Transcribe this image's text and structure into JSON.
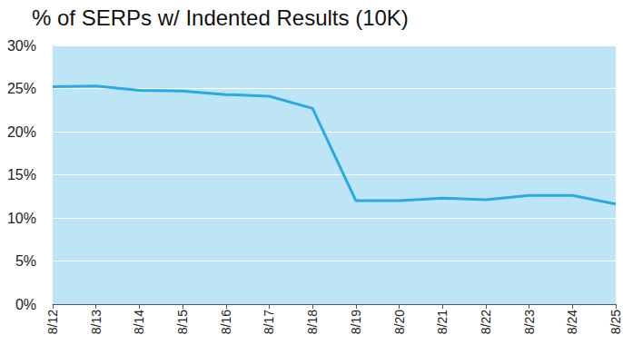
{
  "chart_data": {
    "type": "line",
    "title": "% of SERPs w/ Indented Results (10K)",
    "categories": [
      "8/12",
      "8/13",
      "8/14",
      "8/15",
      "8/16",
      "8/17",
      "8/18",
      "8/19",
      "8/20",
      "8/21",
      "8/22",
      "8/23",
      "8/24",
      "8/25"
    ],
    "values": [
      25.2,
      25.3,
      24.8,
      24.7,
      24.3,
      24.1,
      22.7,
      12.0,
      12.0,
      12.3,
      12.1,
      12.6,
      12.6,
      11.6
    ],
    "color": "#29abe2",
    "ylim": [
      0,
      30
    ],
    "yticks": [
      {
        "value": 0,
        "label": "0%"
      },
      {
        "value": 5,
        "label": "5%"
      },
      {
        "value": 10,
        "label": "10%"
      },
      {
        "value": 15,
        "label": "15%"
      },
      {
        "value": 20,
        "label": "20%"
      },
      {
        "value": 25,
        "label": "25%"
      },
      {
        "value": 30,
        "label": "30%"
      }
    ],
    "grid": true
  }
}
